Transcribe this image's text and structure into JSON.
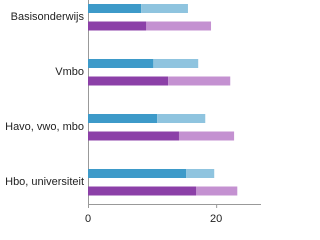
{
  "chart_data": {
    "type": "stacked-bar-horizontal",
    "categories": [
      "Basisonderwijs",
      "Vmbo",
      "Havo, vwo, mbo",
      "Hbo, universiteit"
    ],
    "stacks": [
      {
        "series": [
          {
            "color": "#3d9ac9",
            "values": [
              8.3,
              10.2,
              10.8,
              15.3
            ]
          },
          {
            "color": "#8fc4df",
            "values": [
              7.3,
              7.0,
              7.5,
              4.4
            ]
          }
        ]
      },
      {
        "series": [
          {
            "color": "#8c40a8",
            "values": [
              9.1,
              12.5,
              14.2,
              16.9
            ]
          },
          {
            "color": "#c491d1",
            "values": [
              10.1,
              9.7,
              8.6,
              6.4
            ]
          }
        ]
      }
    ],
    "xlim": [
      0,
      27
    ],
    "xticks": [
      0,
      20
    ]
  }
}
